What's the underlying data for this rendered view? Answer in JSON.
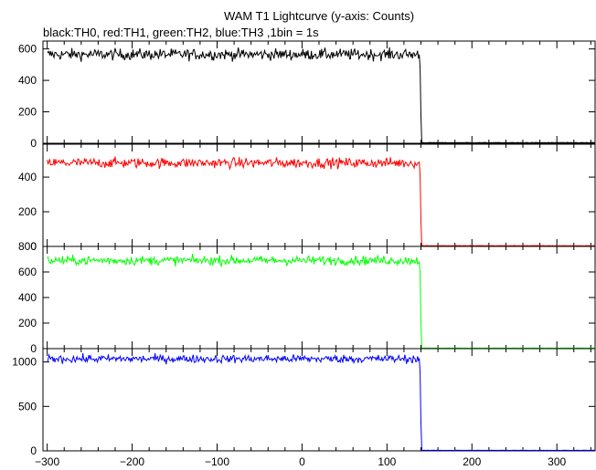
{
  "title": "WAM T1 Lightcurve (y-axis: Counts)",
  "subtitle": "black:TH0, red:TH1, green:TH2, blue:TH3 ,1bin = 1s",
  "chart_data": {
    "type": "line",
    "title": "WAM T1 Lightcurve (y-axis: Counts)",
    "subtitle": "black:TH0, red:TH1, green:TH2, blue:TH3 ,1bin = 1s",
    "xlabel": "",
    "ylabel": "",
    "xlim": [
      -305,
      345
    ],
    "x_ticks": [
      -300,
      -200,
      -100,
      0,
      100,
      200,
      300
    ],
    "drop_x": 139,
    "grid": false,
    "panels": [
      {
        "series": "TH0",
        "color": "#000000",
        "ylim": [
          0,
          650
        ],
        "yticks": [
          0,
          200,
          400,
          600
        ],
        "level": 565,
        "noise": 22,
        "after_level": 4
      },
      {
        "series": "TH1",
        "color": "#ff0000",
        "ylim": [
          0,
          590
        ],
        "yticks": [
          0,
          200,
          400
        ],
        "level": 482,
        "noise": 18,
        "after_level": 4
      },
      {
        "series": "TH2",
        "color": "#00ff00",
        "ylim": [
          0,
          800
        ],
        "yticks": [
          0,
          200,
          400,
          600,
          800
        ],
        "level": 690,
        "noise": 22,
        "after_level": 4
      },
      {
        "series": "TH3",
        "color": "#0000ff",
        "ylim": [
          0,
          1150
        ],
        "yticks": [
          0,
          500,
          1000
        ],
        "level": 1035,
        "noise": 28,
        "after_level": 6
      }
    ]
  }
}
